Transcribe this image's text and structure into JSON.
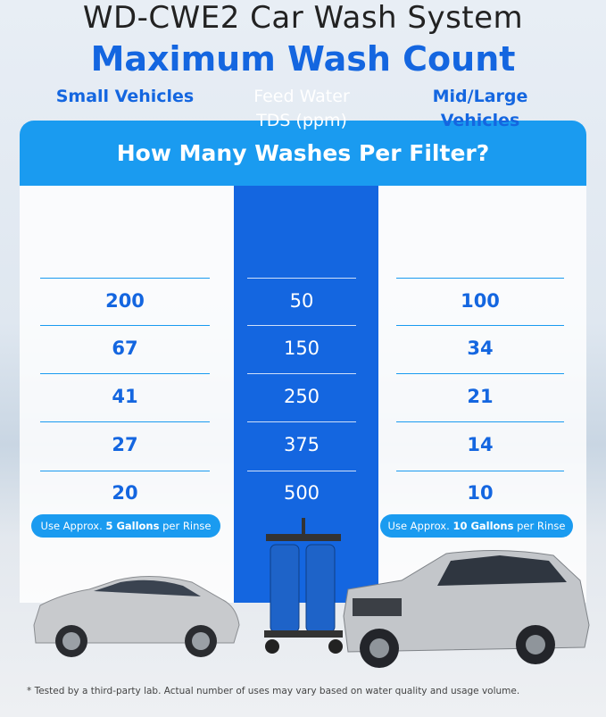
{
  "header": {
    "title": "WD-CWE2 Car Wash System",
    "subtitle": "Maximum Wash Count"
  },
  "table": {
    "title": "How Many Washes Per Filter?",
    "columns": [
      "Small Vehicles",
      "Feed Water TDS (ppm)",
      "Mid/Large Vehicles"
    ],
    "rows": [
      [
        200,
        50,
        100
      ],
      [
        67,
        150,
        34
      ],
      [
        41,
        250,
        21
      ],
      [
        27,
        375,
        14
      ],
      [
        20,
        500,
        10
      ]
    ]
  },
  "notes": [
    {
      "prefix": "Use Approx. ",
      "bold": "5 Gallons",
      "suffix": " per Rinse"
    },
    {
      "prefix": "Use Approx. ",
      "bold": "10 Gallons",
      "suffix": " per Rinse"
    }
  ],
  "footnote": "* Tested by a third-party lab. Actual number of uses may vary based on water quality and usage volume."
}
